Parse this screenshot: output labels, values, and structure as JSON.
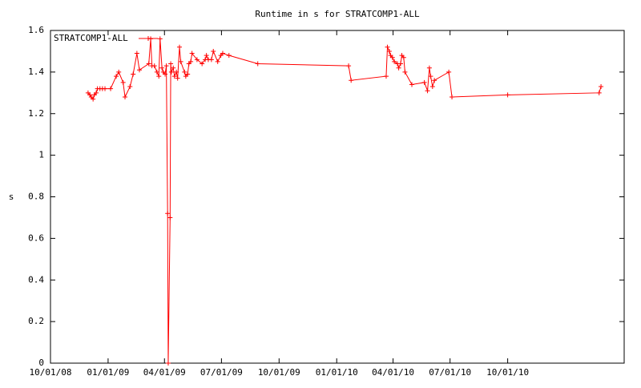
{
  "chart_data": {
    "type": "line",
    "title": "Runtime in s for STRATCOMP1-ALL",
    "y_label": "s",
    "legend": "top-left",
    "xlim": [
      "2008-10-01",
      "2011-04-05"
    ],
    "ylim": [
      0,
      1.6
    ],
    "xticks": [
      {
        "value": "2008-10-01",
        "label": "10/01/08"
      },
      {
        "value": "2009-01-01",
        "label": "01/01/09"
      },
      {
        "value": "2009-04-01",
        "label": "04/01/09"
      },
      {
        "value": "2009-07-01",
        "label": "07/01/09"
      },
      {
        "value": "2009-10-01",
        "label": "10/01/09"
      },
      {
        "value": "2010-01-01",
        "label": "01/01/10"
      },
      {
        "value": "2010-04-01",
        "label": "04/01/10"
      },
      {
        "value": "2010-07-01",
        "label": "07/01/10"
      },
      {
        "value": "2010-10-01",
        "label": "10/01/10"
      }
    ],
    "yticks": [
      0,
      0.2,
      0.4,
      0.6,
      0.8,
      1,
      1.2,
      1.4,
      1.6
    ],
    "x": [
      "2008-11-30",
      "2008-12-03",
      "2008-12-05",
      "2008-12-08",
      "2008-12-10",
      "2008-12-13",
      "2008-12-15",
      "2008-12-19",
      "2008-12-23",
      "2008-12-27",
      "2009-01-05",
      "2009-01-14",
      "2009-01-18",
      "2009-01-25",
      "2009-01-28",
      "2009-02-05",
      "2009-02-10",
      "2009-02-16",
      "2009-02-20",
      "2009-03-07",
      "2009-03-10",
      "2009-03-12",
      "2009-03-16",
      "2009-03-20",
      "2009-03-23",
      "2009-03-25",
      "2009-03-28",
      "2009-03-30",
      "2009-04-02",
      "2009-04-04",
      "2009-04-06",
      "2009-04-07",
      "2009-04-10",
      "2009-04-11",
      "2009-04-12",
      "2009-04-15",
      "2009-04-17",
      "2009-04-20",
      "2009-04-22",
      "2009-04-25",
      "2009-04-27",
      "2009-05-03",
      "2009-05-05",
      "2009-05-08",
      "2009-05-10",
      "2009-05-13",
      "2009-05-15",
      "2009-05-23",
      "2009-05-31",
      "2009-06-05",
      "2009-06-07",
      "2009-06-10",
      "2009-06-15",
      "2009-06-18",
      "2009-06-25",
      "2009-06-30",
      "2009-07-03",
      "2009-07-13",
      "2009-08-28",
      "2010-01-20",
      "2010-01-24",
      "2010-03-21",
      "2010-03-23",
      "2010-03-26",
      "2010-03-28",
      "2010-03-31",
      "2010-04-03",
      "2010-04-08",
      "2010-04-10",
      "2010-04-13",
      "2010-04-15",
      "2010-04-18",
      "2010-04-20",
      "2010-05-01",
      "2010-05-21",
      "2010-05-26",
      "2010-05-29",
      "2010-05-31",
      "2010-06-03",
      "2010-06-06",
      "2010-06-29",
      "2010-07-04",
      "2010-10-01",
      "2011-02-24",
      "2011-02-27"
    ],
    "series": [
      {
        "name": "STRATCOMP1-ALL",
        "color": "#ff0000",
        "values": [
          1.3,
          1.29,
          1.28,
          1.27,
          1.29,
          1.3,
          1.32,
          1.32,
          1.32,
          1.32,
          1.32,
          1.38,
          1.4,
          1.35,
          1.28,
          1.33,
          1.39,
          1.49,
          1.41,
          1.44,
          1.56,
          1.43,
          1.43,
          1.4,
          1.38,
          1.56,
          1.42,
          1.4,
          1.39,
          1.43,
          0.72,
          0,
          0.7,
          1.44,
          1.4,
          1.42,
          1.38,
          1.4,
          1.37,
          1.52,
          1.45,
          1.4,
          1.38,
          1.39,
          1.44,
          1.45,
          1.49,
          1.46,
          1.44,
          1.46,
          1.48,
          1.46,
          1.46,
          1.5,
          1.45,
          1.48,
          1.49,
          1.48,
          1.44,
          1.43,
          1.36,
          1.38,
          1.52,
          1.5,
          1.48,
          1.47,
          1.45,
          1.44,
          1.42,
          1.44,
          1.48,
          1.47,
          1.4,
          1.34,
          1.35,
          1.31,
          1.42,
          1.38,
          1.33,
          1.36,
          1.4,
          1.28,
          1.29,
          1.3,
          1.33
        ]
      }
    ]
  }
}
